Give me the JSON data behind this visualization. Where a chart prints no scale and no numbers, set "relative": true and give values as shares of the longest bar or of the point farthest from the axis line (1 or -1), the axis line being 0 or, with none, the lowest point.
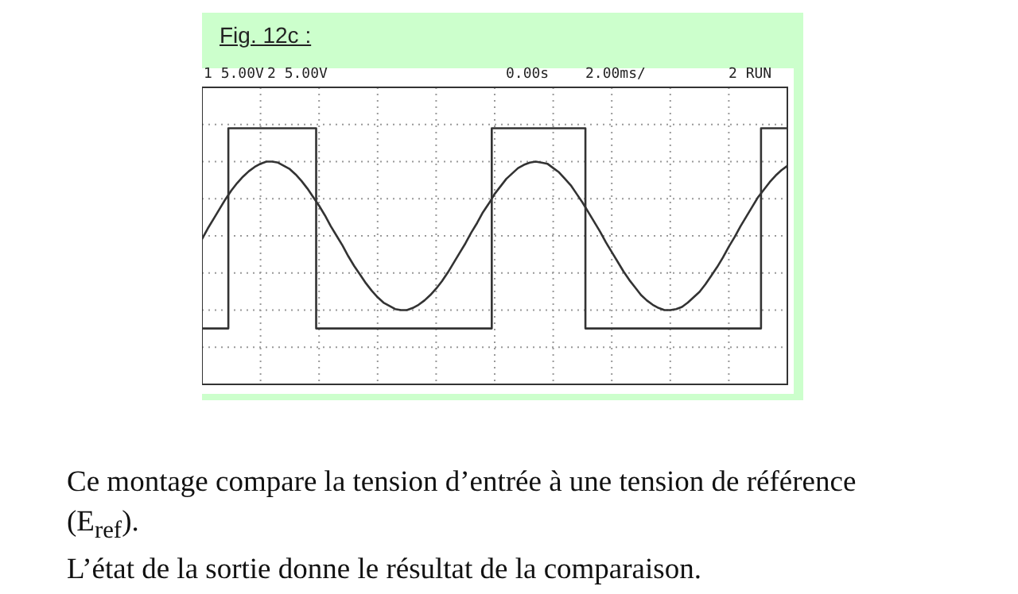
{
  "chart_data": {
    "type": "line",
    "title": "Fig. 12c :",
    "relative": true,
    "grid": true,
    "legend": false,
    "marker": "none",
    "line_style": "solid",
    "annotations": [
      "1 5.00V",
      "2 5.00V",
      "0.00s",
      "2.00ms/",
      "2 RUN",
      "Ce montage compare la tension d’entrée à une tension de référence (E$_{ref}$).",
      "L’état de la sortie donne le résultat de la comparaison."
    ],
    "categories": [
      null,
      null,
      null,
      null,
      null,
      null,
      null,
      null,
      null,
      null,
      null,
      null,
      null,
      null,
      null,
      null,
      null,
      null,
      null,
      null,
      null,
      null,
      null,
      null,
      null,
      null,
      null,
      null,
      null,
      null,
      null,
      null,
      null,
      null,
      null,
      null,
      null,
      null,
      null,
      null,
      null,
      null,
      null,
      null,
      null,
      null,
      null,
      null,
      null,
      null,
      null,
      null,
      null,
      null,
      null,
      null,
      null,
      null,
      null,
      null,
      null,
      null,
      null,
      null,
      null,
      null,
      null,
      null,
      null,
      null,
      null,
      null,
      null,
      null,
      null,
      null,
      null,
      null,
      null,
      null,
      null,
      null,
      null,
      null,
      null,
      null,
      null,
      null,
      null,
      null,
      null,
      null,
      null,
      null,
      null,
      null,
      null,
      null,
      null,
      null,
      null
    ],
    "series": [
      {
        "type": "step",
        "color": "#333333",
        "values": [
          -0.86,
          -0.86,
          -0.86,
          -0.86,
          -0.86,
          1,
          1,
          1,
          1,
          1,
          1,
          1,
          1,
          1,
          1,
          1,
          1,
          1,
          1,
          1,
          -0.86,
          -0.86,
          -0.86,
          -0.86,
          -0.86,
          -0.86,
          -0.86,
          -0.86,
          -0.86,
          -0.86,
          -0.86,
          -0.86,
          -0.86,
          -0.86,
          -0.86,
          -0.86,
          -0.86,
          -0.86,
          -0.86,
          -0.86,
          -0.86,
          -0.86,
          -0.86,
          -0.86,
          -0.86,
          -0.86,
          -0.86,
          -0.86,
          -0.86,
          -0.86,
          1,
          1,
          1,
          1,
          1,
          1,
          1,
          1,
          1,
          1,
          1,
          1,
          1,
          1,
          1,
          1,
          -0.86,
          -0.86,
          -0.86,
          -0.86,
          -0.86,
          -0.86,
          -0.86,
          -0.86,
          -0.86,
          -0.86,
          -0.86,
          -0.86,
          -0.86,
          -0.86,
          -0.86,
          -0.86,
          -0.86,
          -0.86,
          -0.86,
          -0.86,
          -0.86,
          -0.86,
          -0.86,
          -0.86,
          -0.86,
          -0.86,
          -0.86,
          -0.86,
          -0.86,
          -0.86,
          1,
          1,
          1,
          1,
          1
        ]
      },
      {
        "color": "#333333",
        "values": [
          -0.03,
          0.07,
          0.16,
          0.25,
          0.34,
          0.42,
          0.49,
          0.55,
          0.6,
          0.64,
          0.67,
          0.69,
          0.69,
          0.68,
          0.65,
          0.62,
          0.57,
          0.51,
          0.44,
          0.36,
          0.28,
          0.19,
          0.09,
          0,
          -0.09,
          -0.19,
          -0.28,
          -0.36,
          -0.44,
          -0.51,
          -0.57,
          -0.62,
          -0.65,
          -0.68,
          -0.69,
          -0.69,
          -0.67,
          -0.64,
          -0.6,
          -0.55,
          -0.49,
          -0.42,
          -0.34,
          -0.25,
          -0.16,
          -0.07,
          0.03,
          0.12,
          0.22,
          0.3,
          0.39,
          0.46,
          0.53,
          0.58,
          0.63,
          0.66,
          0.68,
          0.69,
          0.68,
          0.67,
          0.63,
          0.59,
          0.53,
          0.47,
          0.39,
          0.31,
          0.22,
          0.13,
          0.04,
          -0.06,
          -0.15,
          -0.24,
          -0.33,
          -0.41,
          -0.48,
          -0.55,
          -0.6,
          -0.64,
          -0.67,
          -0.69,
          -0.69,
          -0.68,
          -0.66,
          -0.62,
          -0.57,
          -0.52,
          -0.45,
          -0.37,
          -0.29,
          -0.2,
          -0.1,
          -0.01,
          0.09,
          0.18,
          0.27,
          0.36,
          0.43,
          0.5,
          0.56,
          0.61,
          0.65
        ]
      }
    ]
  }
}
